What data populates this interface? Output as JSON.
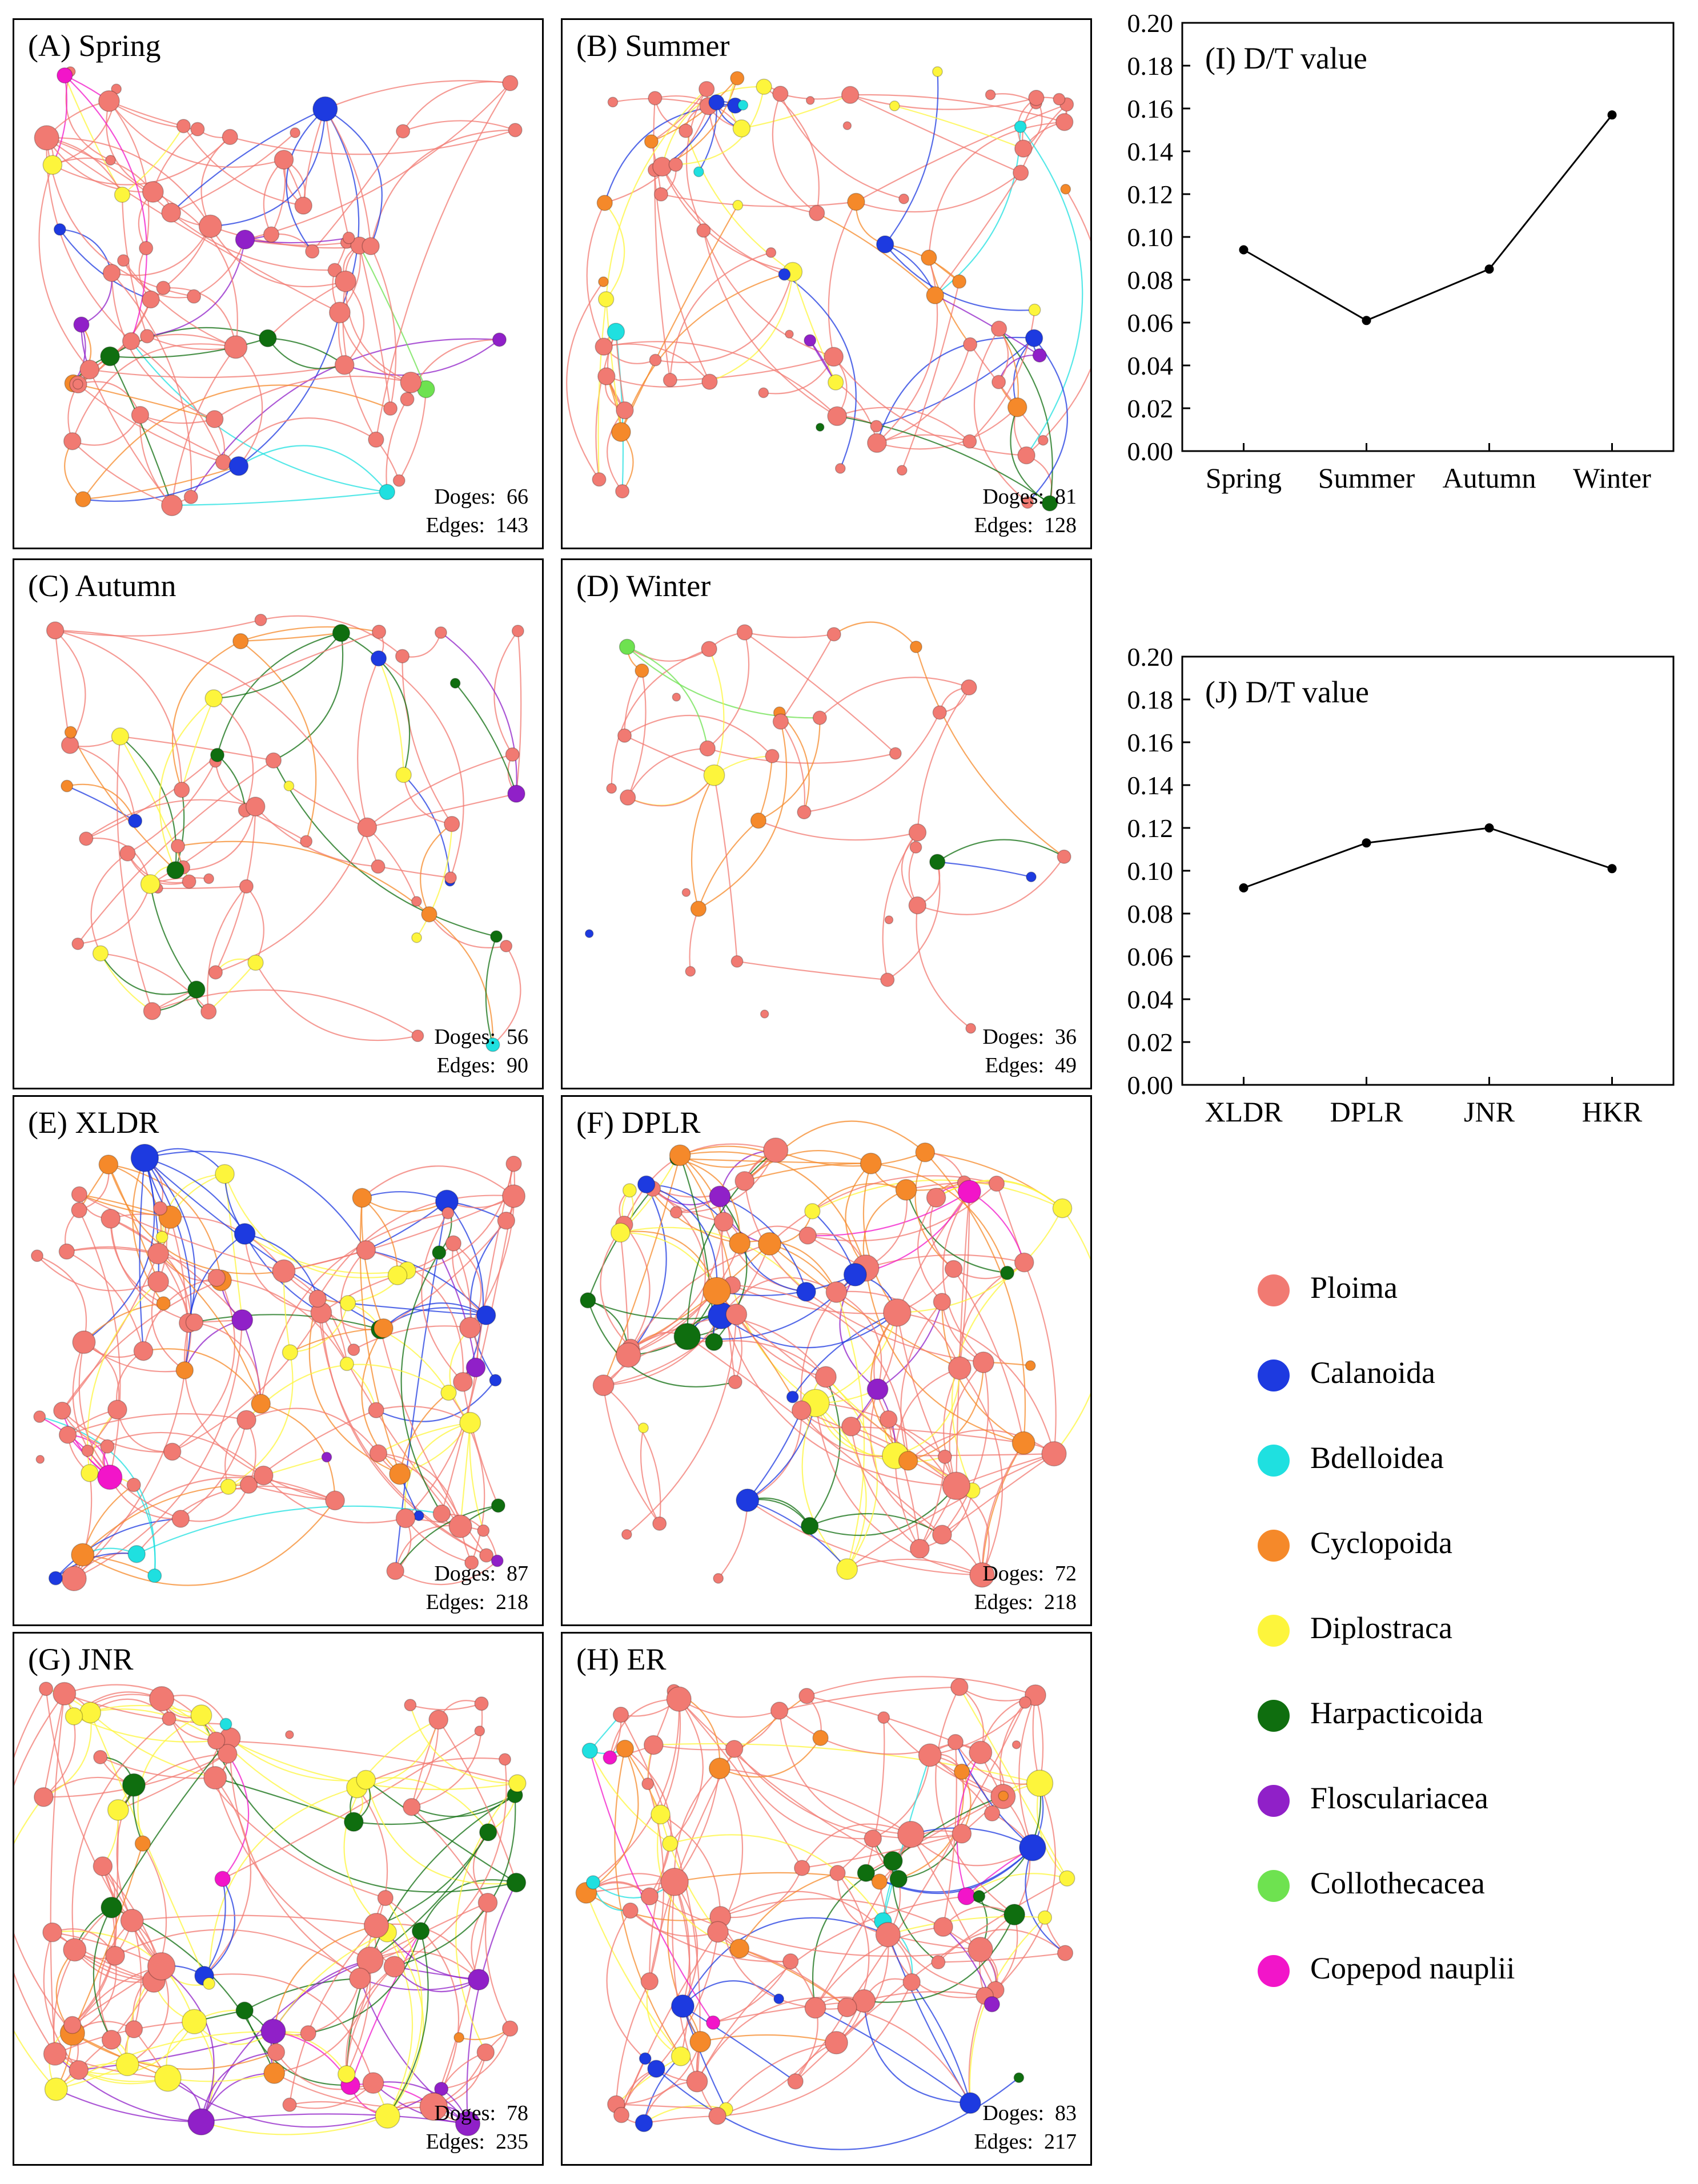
{
  "colors": {
    "Ploima": "#f17a72",
    "Calanoida": "#1d3ae0",
    "Bdelloidea": "#1fe0e0",
    "Cyclopoida": "#f5892a",
    "Diplostraca": "#fdf53c",
    "Harpacticoida": "#0f6e0f",
    "Floscularia": "#9020c8",
    "Collothecacea": "#6ee250",
    "Copepod": "#f215c9"
  },
  "panels": {
    "A": {
      "title": "(A) Spring",
      "nodes_label": "Doges:",
      "nodes": "66",
      "edges_label": "Edges:",
      "edges": "143"
    },
    "B": {
      "title": "(B) Summer",
      "nodes_label": "Doges:",
      "nodes": "81",
      "edges_label": "Edges:",
      "edges": "128"
    },
    "C": {
      "title": "(C) Autumn",
      "nodes_label": "Doges:",
      "nodes": "56",
      "edges_label": "Edges:",
      "edges": "90"
    },
    "D": {
      "title": "(D) Winter",
      "nodes_label": "Doges:",
      "nodes": "36",
      "edges_label": "Edges:",
      "edges": "49"
    },
    "E": {
      "title": "(E) XLDR",
      "nodes_label": "Doges:",
      "nodes": "87",
      "edges_label": "Edges:",
      "edges": "218"
    },
    "F": {
      "title": "(F) DPLR",
      "nodes_label": "Doges:",
      "nodes": "72",
      "edges_label": "Edges:",
      "edges": "218"
    },
    "G": {
      "title": "(G) JNR",
      "nodes_label": "Doges:",
      "nodes": "78",
      "edges_label": "Edges:",
      "edges": "235"
    },
    "H": {
      "title": "(H) ER",
      "nodes_label": "Doges:",
      "nodes": "83",
      "edges_label": "Edges:",
      "edges": "217"
    }
  },
  "legend": [
    {
      "label": "Ploima",
      "color": "#f17a72"
    },
    {
      "label": "Calanoida",
      "color": "#1d3ae0"
    },
    {
      "label": "Bdelloidea",
      "color": "#1fe0e0"
    },
    {
      "label": "Cyclopoida",
      "color": "#f5892a"
    },
    {
      "label": "Diplostraca",
      "color": "#fdf53c"
    },
    {
      "label": "Harpacticoida",
      "color": "#0f6e0f"
    },
    {
      "label": "Floscularia­cea",
      "color": "#9020c8"
    },
    {
      "label": "Collothecacea",
      "color": "#6ee250"
    },
    {
      "label": "Copepod nauplii",
      "color": "#f215c9"
    }
  ],
  "chart_data": [
    {
      "id": "I",
      "type": "line",
      "title": "(I) D/T value",
      "categories": [
        "Spring",
        "Summer",
        "Autumn",
        "Winter"
      ],
      "values": [
        0.094,
        0.061,
        0.085,
        0.157
      ],
      "ylim": [
        0,
        0.2
      ],
      "yticks": [
        "0.00",
        "0.02",
        "0.04",
        "0.06",
        "0.08",
        "0.10",
        "0.12",
        "0.14",
        "0.16",
        "0.18",
        "0.20"
      ],
      "xlabel": "",
      "ylabel": ""
    },
    {
      "id": "J",
      "type": "line",
      "title": "(J) D/T value",
      "categories": [
        "XLDR",
        "DPLR",
        "JNR",
        "HKR"
      ],
      "values": [
        0.092,
        0.113,
        0.12,
        0.101
      ],
      "ylim": [
        0,
        0.2
      ],
      "yticks": [
        "0.00",
        "0.02",
        "0.04",
        "0.06",
        "0.08",
        "0.10",
        "0.12",
        "0.14",
        "0.16",
        "0.18",
        "0.20"
      ],
      "xlabel": "",
      "ylabel": ""
    }
  ]
}
